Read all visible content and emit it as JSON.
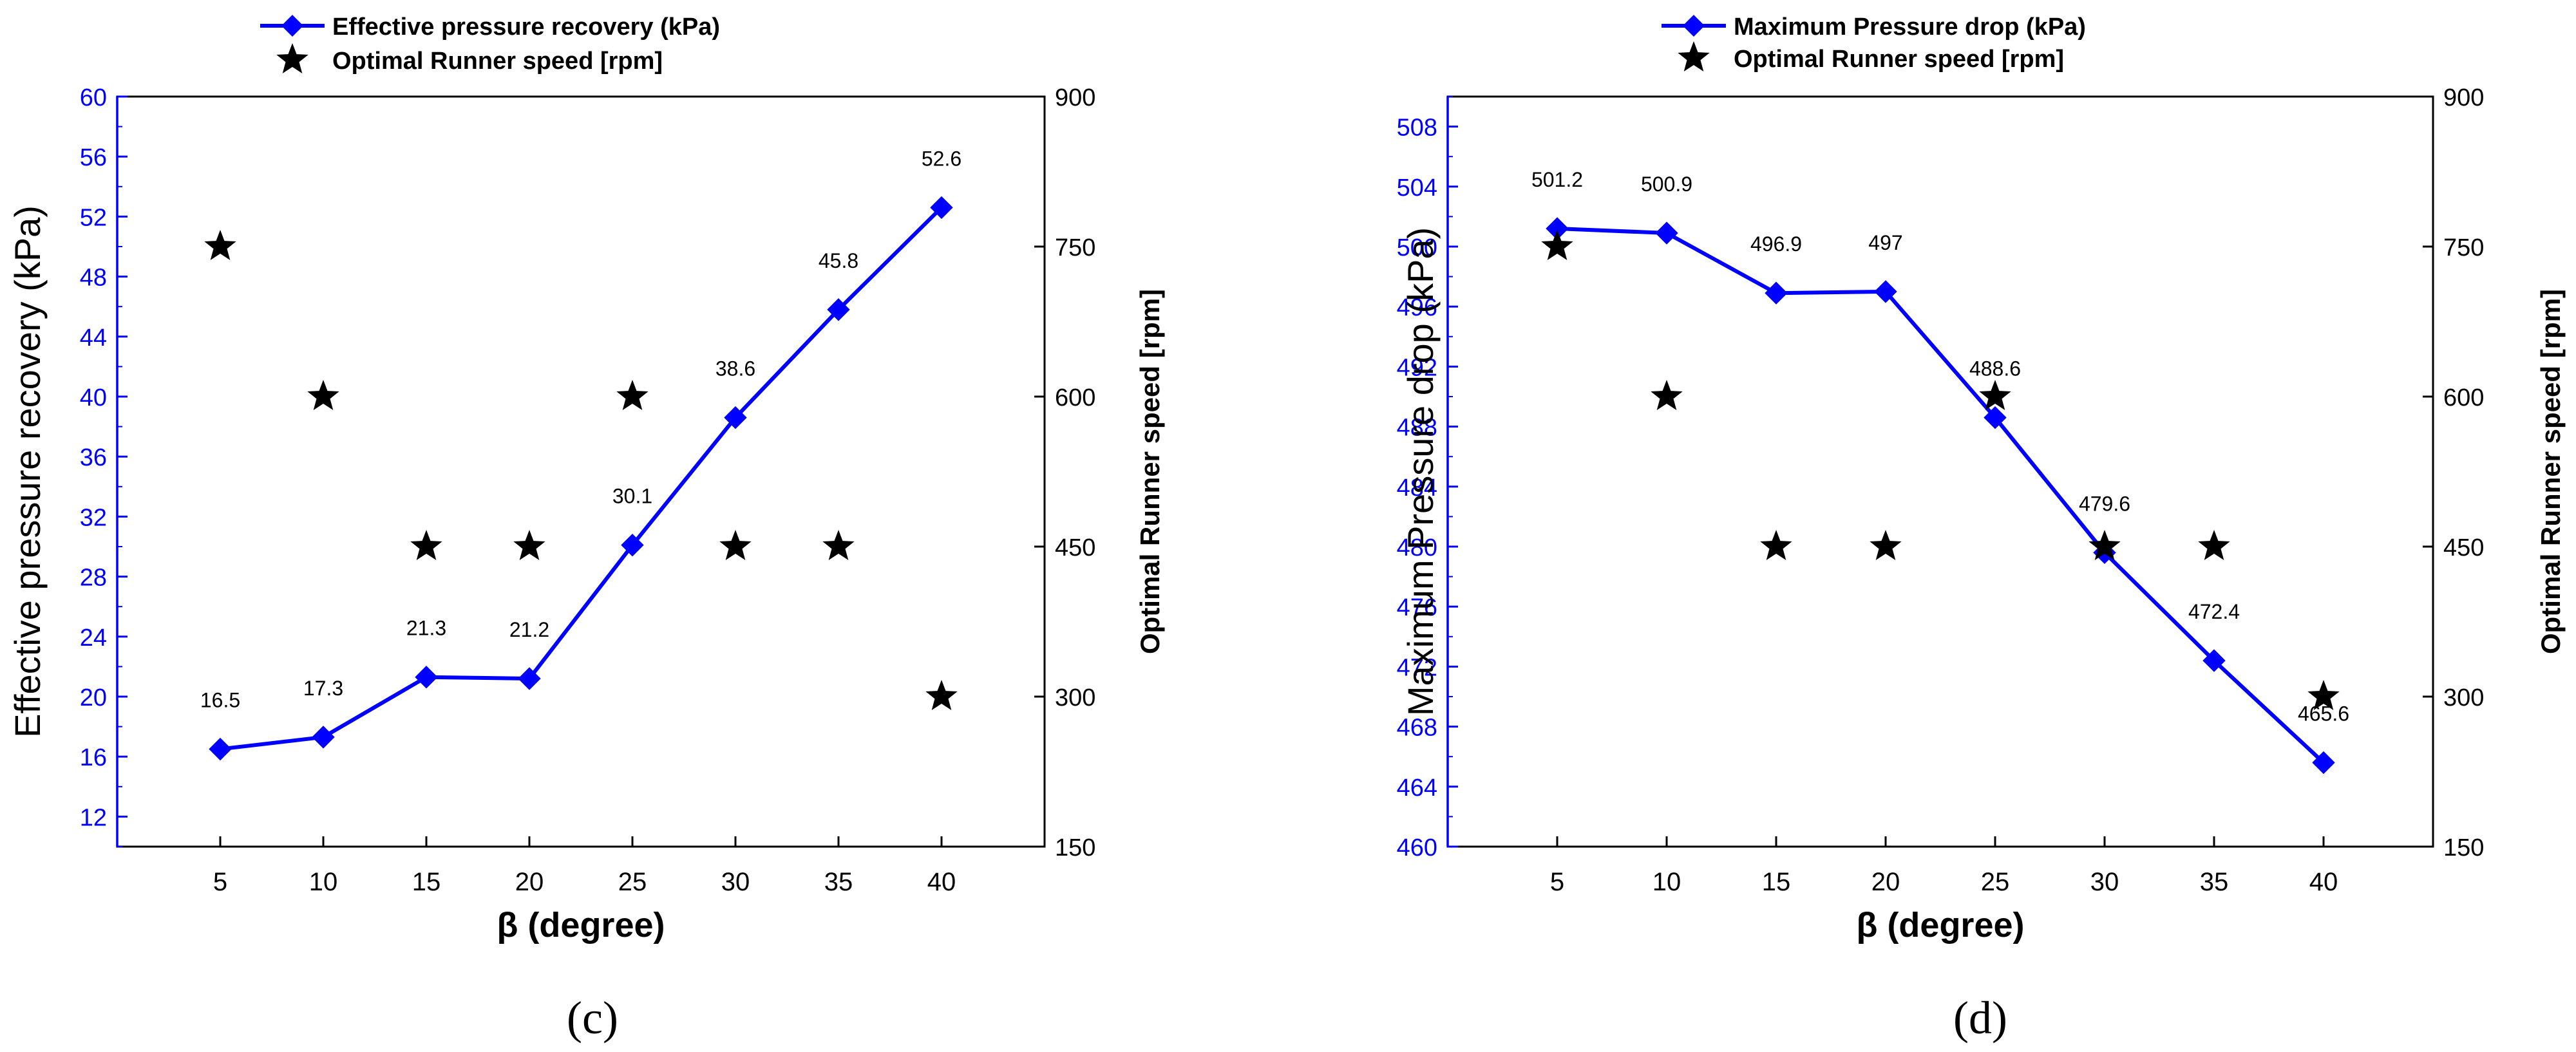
{
  "colors": {
    "primary": "#0000ff",
    "secondary": "#000000",
    "frame": "#000000"
  },
  "chart_data": [
    {
      "type": "line",
      "panel_label": "(c)",
      "xlabel": "β (degree)",
      "x": [
        5,
        10,
        15,
        20,
        25,
        30,
        35,
        40
      ],
      "xticks": [
        "5",
        "10",
        "15",
        "20",
        "25",
        "30",
        "35",
        "40"
      ],
      "xlim": [
        0,
        45
      ],
      "ylabel_left": "Effective pressure recovery (kPa)",
      "ylim_left": [
        10,
        60
      ],
      "yticks_left": [
        "12",
        "16",
        "20",
        "24",
        "28",
        "32",
        "36",
        "40",
        "44",
        "48",
        "52",
        "56",
        "60"
      ],
      "ylabel_right": "Optimal Runner speed [rpm]",
      "ylim_right": [
        150,
        900
      ],
      "yticks_right": [
        "150",
        "300",
        "450",
        "600",
        "750",
        "900"
      ],
      "legend": [
        "Effective pressure recovery (kPa)",
        "Optimal Runner speed [rpm]"
      ],
      "series": [
        {
          "name": "Effective pressure recovery (kPa)",
          "axis": "left",
          "marker": "diamond",
          "values": [
            16.5,
            17.3,
            21.3,
            21.2,
            30.1,
            38.6,
            45.8,
            52.6
          ],
          "labels": [
            "16.5",
            "17.3",
            "21.3",
            "21.2",
            "30.1",
            "38.6",
            "45.8",
            "52.6"
          ]
        },
        {
          "name": "Optimal Runner speed [rpm]",
          "axis": "right",
          "marker": "star",
          "values": [
            750,
            600,
            450,
            450,
            600,
            450,
            450,
            300
          ]
        }
      ]
    },
    {
      "type": "line",
      "panel_label": "(d)",
      "xlabel": "β (degree)",
      "x": [
        5,
        10,
        15,
        20,
        25,
        30,
        35,
        40
      ],
      "xticks": [
        "5",
        "10",
        "15",
        "20",
        "25",
        "30",
        "35",
        "40"
      ],
      "xlim": [
        0,
        45
      ],
      "ylabel_left": "Maximum Pressure drop (kPa)",
      "ylim_left": [
        460,
        510
      ],
      "yticks_left": [
        "460",
        "464",
        "468",
        "472",
        "476",
        "480",
        "484",
        "488",
        "492",
        "496",
        "500",
        "504",
        "508"
      ],
      "ylabel_right": "Optimal Runner speed [rpm]",
      "ylim_right": [
        150,
        900
      ],
      "yticks_right": [
        "150",
        "300",
        "450",
        "600",
        "750",
        "900"
      ],
      "legend": [
        "Maximum Pressure drop (kPa)",
        "Optimal Runner speed [rpm]"
      ],
      "series": [
        {
          "name": "Maximum Pressure drop (kPa)",
          "axis": "left",
          "marker": "diamond",
          "values": [
            501.2,
            500.9,
            496.9,
            497,
            488.6,
            479.6,
            472.4,
            465.6
          ],
          "labels": [
            "501.2",
            "500.9",
            "496.9",
            "497",
            "488.6",
            "479.6",
            "472.4",
            "465.6"
          ]
        },
        {
          "name": "Optimal Runner speed [rpm]",
          "axis": "right",
          "marker": "star",
          "values": [
            750,
            600,
            450,
            450,
            600,
            450,
            450,
            300
          ]
        }
      ]
    }
  ]
}
